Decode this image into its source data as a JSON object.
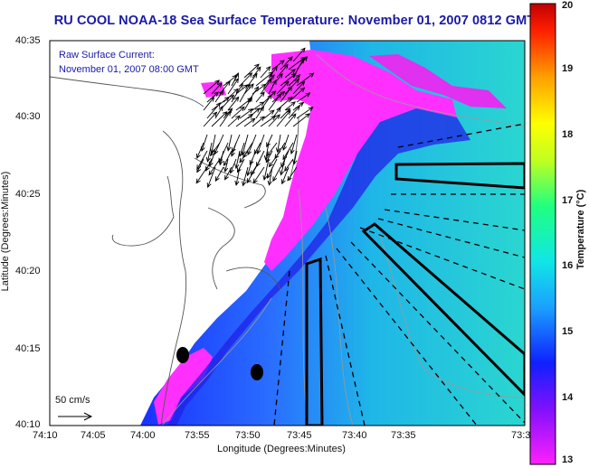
{
  "title": "RU COOL  NOAA-18  Sea Surface Temperature:  November 01, 2007 0812 GMT",
  "current_annotation": {
    "line1": "Raw Surface Current:",
    "line2": "November 01, 2007 08:00 GMT"
  },
  "scale_label": "50 cm/s",
  "chart_data": {
    "type": "heatmap",
    "title": "RU COOL  NOAA-18  Sea Surface Temperature:  November 01, 2007 0812 GMT",
    "xlabel": "Longitude (Degrees:Minutes)",
    "ylabel": "Latitude (Degrees:Minutes)",
    "x_ticks": [
      "74:10",
      "74:05",
      "74:00",
      "73:55",
      "73:50",
      "73:45",
      "73:40",
      "73:35",
      "73:3"
    ],
    "y_ticks": [
      "40:35",
      "40:30",
      "40:25",
      "40:20",
      "40:15",
      "40:10"
    ],
    "colorbar": {
      "label": "Temperature (°C)",
      "range": [
        13,
        20
      ],
      "ticks": [
        "20",
        "19",
        "18",
        "17",
        "16",
        "15",
        "14",
        "13"
      ]
    }
  },
  "colors": {
    "title": "#1a1aa6",
    "land": "#ffffff",
    "sst_cold": "#ff22ff",
    "sst_mid": "#2060ff",
    "sst_warm": "#20e0d0"
  }
}
